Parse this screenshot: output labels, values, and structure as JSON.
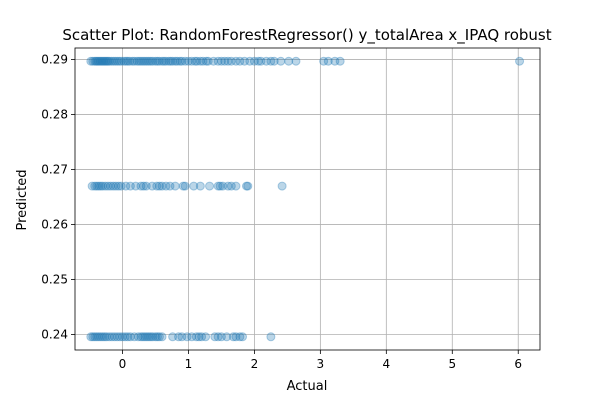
{
  "chart_data": {
    "type": "scatter",
    "title": "Scatter Plot: RandomForestRegressor() y_totalArea x_IPAQ robust",
    "xlabel": "Actual",
    "ylabel": "Predicted",
    "xlim": [
      -0.72,
      6.33
    ],
    "ylim": [
      0.2372,
      0.2921
    ],
    "xticks": [
      0,
      1,
      2,
      3,
      4,
      5,
      6
    ],
    "xtick_labels": [
      "0",
      "1",
      "2",
      "3",
      "4",
      "5",
      "6"
    ],
    "yticks": [
      0.24,
      0.25,
      0.26,
      0.27,
      0.28,
      0.29
    ],
    "ytick_labels": [
      "0.24",
      "0.25",
      "0.26",
      "0.27",
      "0.28",
      "0.29"
    ],
    "grid": true,
    "legend": "none",
    "color": "#1f77b4",
    "series": [
      {
        "values": [
          [
            -0.48,
            0.2897
          ],
          [
            -0.45,
            0.2897
          ],
          [
            -0.42,
            0.2897
          ],
          [
            -0.4,
            0.2897
          ],
          [
            -0.38,
            0.2897
          ],
          [
            -0.36,
            0.2897
          ],
          [
            -0.34,
            0.2897
          ],
          [
            -0.32,
            0.2897
          ],
          [
            -0.3,
            0.2897
          ],
          [
            -0.28,
            0.2897
          ],
          [
            -0.26,
            0.2897
          ],
          [
            -0.24,
            0.2897
          ],
          [
            -0.22,
            0.2897
          ],
          [
            -0.2,
            0.2897
          ],
          [
            -0.17,
            0.2897
          ],
          [
            -0.14,
            0.2897
          ],
          [
            -0.11,
            0.2897
          ],
          [
            -0.08,
            0.2897
          ],
          [
            -0.05,
            0.2897
          ],
          [
            -0.02,
            0.2897
          ],
          [
            0.02,
            0.2897
          ],
          [
            0.05,
            0.2897
          ],
          [
            0.08,
            0.2897
          ],
          [
            0.11,
            0.2897
          ],
          [
            0.15,
            0.2897
          ],
          [
            0.18,
            0.2897
          ],
          [
            0.22,
            0.2897
          ],
          [
            0.25,
            0.2897
          ],
          [
            0.28,
            0.2897
          ],
          [
            0.31,
            0.2897
          ],
          [
            0.34,
            0.2897
          ],
          [
            0.37,
            0.2897
          ],
          [
            0.4,
            0.2897
          ],
          [
            0.43,
            0.2897
          ],
          [
            0.46,
            0.2897
          ],
          [
            0.5,
            0.2897
          ],
          [
            0.53,
            0.2897
          ],
          [
            0.56,
            0.2897
          ],
          [
            0.6,
            0.2897
          ],
          [
            0.63,
            0.2897
          ],
          [
            0.66,
            0.2897
          ],
          [
            0.7,
            0.2897
          ],
          [
            0.73,
            0.2897
          ],
          [
            0.76,
            0.2897
          ],
          [
            0.8,
            0.2897
          ],
          [
            0.83,
            0.2897
          ],
          [
            0.87,
            0.2897
          ],
          [
            0.9,
            0.2897
          ],
          [
            0.95,
            0.2897
          ],
          [
            1.0,
            0.2897
          ],
          [
            1.05,
            0.2897
          ],
          [
            1.1,
            0.2897
          ],
          [
            1.13,
            0.2897
          ],
          [
            1.18,
            0.2897
          ],
          [
            1.22,
            0.2897
          ],
          [
            1.27,
            0.2897
          ],
          [
            1.3,
            0.2897
          ],
          [
            1.38,
            0.2897
          ],
          [
            1.45,
            0.2897
          ],
          [
            1.5,
            0.2897
          ],
          [
            1.55,
            0.2897
          ],
          [
            1.6,
            0.2897
          ],
          [
            1.65,
            0.2897
          ],
          [
            1.72,
            0.2897
          ],
          [
            1.78,
            0.2897
          ],
          [
            1.85,
            0.2897
          ],
          [
            1.93,
            0.2897
          ],
          [
            2.0,
            0.2897
          ],
          [
            2.06,
            0.2897
          ],
          [
            2.1,
            0.2897
          ],
          [
            2.18,
            0.2897
          ],
          [
            2.25,
            0.2897
          ],
          [
            2.3,
            0.2897
          ],
          [
            2.4,
            0.2897
          ],
          [
            2.52,
            0.2897
          ],
          [
            2.63,
            0.2897
          ],
          [
            3.05,
            0.2897
          ],
          [
            3.12,
            0.2897
          ],
          [
            3.22,
            0.2897
          ],
          [
            3.3,
            0.2897
          ],
          [
            6.02,
            0.2897
          ],
          [
            -0.46,
            0.267
          ],
          [
            -0.42,
            0.267
          ],
          [
            -0.39,
            0.267
          ],
          [
            -0.36,
            0.267
          ],
          [
            -0.33,
            0.267
          ],
          [
            -0.3,
            0.267
          ],
          [
            -0.26,
            0.267
          ],
          [
            -0.22,
            0.267
          ],
          [
            -0.18,
            0.267
          ],
          [
            -0.14,
            0.267
          ],
          [
            -0.1,
            0.267
          ],
          [
            -0.06,
            0.267
          ],
          [
            -0.02,
            0.267
          ],
          [
            0.05,
            0.267
          ],
          [
            0.12,
            0.267
          ],
          [
            0.2,
            0.267
          ],
          [
            0.28,
            0.267
          ],
          [
            0.32,
            0.267
          ],
          [
            0.36,
            0.267
          ],
          [
            0.45,
            0.267
          ],
          [
            0.52,
            0.267
          ],
          [
            0.56,
            0.267
          ],
          [
            0.6,
            0.267
          ],
          [
            0.66,
            0.267
          ],
          [
            0.72,
            0.267
          ],
          [
            0.8,
            0.267
          ],
          [
            0.92,
            0.267
          ],
          [
            0.95,
            0.267
          ],
          [
            1.08,
            0.267
          ],
          [
            1.18,
            0.267
          ],
          [
            1.32,
            0.267
          ],
          [
            1.45,
            0.267
          ],
          [
            1.48,
            0.267
          ],
          [
            1.52,
            0.267
          ],
          [
            1.6,
            0.267
          ],
          [
            1.65,
            0.267
          ],
          [
            1.72,
            0.267
          ],
          [
            1.88,
            0.267
          ],
          [
            1.9,
            0.267
          ],
          [
            2.42,
            0.267
          ],
          [
            -0.48,
            0.2396
          ],
          [
            -0.45,
            0.2396
          ],
          [
            -0.42,
            0.2396
          ],
          [
            -0.39,
            0.2396
          ],
          [
            -0.36,
            0.2396
          ],
          [
            -0.33,
            0.2396
          ],
          [
            -0.3,
            0.2396
          ],
          [
            -0.27,
            0.2396
          ],
          [
            -0.24,
            0.2396
          ],
          [
            -0.2,
            0.2396
          ],
          [
            -0.16,
            0.2396
          ],
          [
            -0.12,
            0.2396
          ],
          [
            -0.08,
            0.2396
          ],
          [
            -0.04,
            0.2396
          ],
          [
            0.0,
            0.2396
          ],
          [
            0.04,
            0.2396
          ],
          [
            0.08,
            0.2396
          ],
          [
            0.12,
            0.2396
          ],
          [
            0.18,
            0.2396
          ],
          [
            0.24,
            0.2396
          ],
          [
            0.28,
            0.2396
          ],
          [
            0.31,
            0.2396
          ],
          [
            0.34,
            0.2396
          ],
          [
            0.37,
            0.2396
          ],
          [
            0.4,
            0.2396
          ],
          [
            0.43,
            0.2396
          ],
          [
            0.46,
            0.2396
          ],
          [
            0.5,
            0.2396
          ],
          [
            0.53,
            0.2396
          ],
          [
            0.56,
            0.2396
          ],
          [
            0.6,
            0.2396
          ],
          [
            0.76,
            0.2396
          ],
          [
            0.85,
            0.2396
          ],
          [
            0.9,
            0.2396
          ],
          [
            0.98,
            0.2396
          ],
          [
            1.05,
            0.2396
          ],
          [
            1.12,
            0.2396
          ],
          [
            1.16,
            0.2396
          ],
          [
            1.2,
            0.2396
          ],
          [
            1.26,
            0.2396
          ],
          [
            1.4,
            0.2396
          ],
          [
            1.45,
            0.2396
          ],
          [
            1.5,
            0.2396
          ],
          [
            1.58,
            0.2396
          ],
          [
            1.68,
            0.2396
          ],
          [
            1.72,
            0.2396
          ],
          [
            1.78,
            0.2396
          ],
          [
            1.82,
            0.2396
          ],
          [
            2.25,
            0.2396
          ]
        ]
      }
    ]
  }
}
